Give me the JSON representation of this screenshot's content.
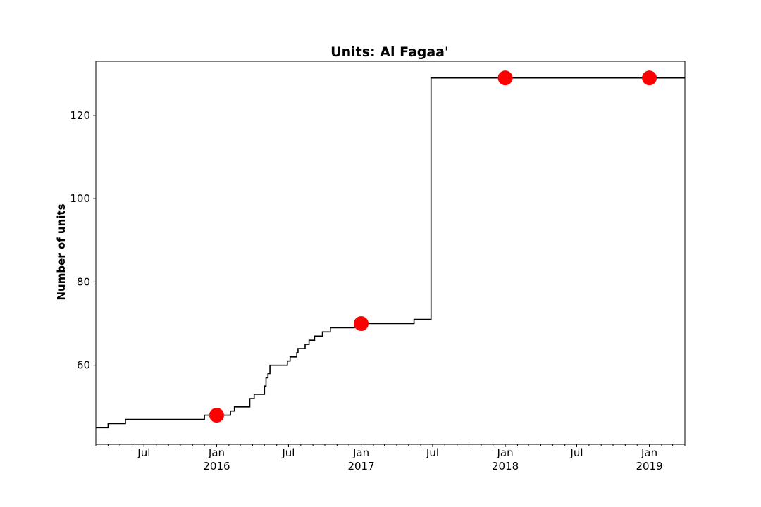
{
  "chart_data": {
    "type": "line",
    "title": "Units: Al Fagaa'",
    "xlabel": "",
    "ylabel": "Number of units",
    "xlim": [
      "2015-03-01",
      "2019-04-01"
    ],
    "ylim": [
      41,
      133
    ],
    "grid": false,
    "legend": "none",
    "y_ticks": [
      60,
      80,
      100,
      120
    ],
    "x_ticks": [
      {
        "date": "2015-07-01",
        "label": "Jul",
        "sublabel": ""
      },
      {
        "date": "2016-01-01",
        "label": "Jan",
        "sublabel": "2016"
      },
      {
        "date": "2016-07-01",
        "label": "Jul",
        "sublabel": ""
      },
      {
        "date": "2017-01-01",
        "label": "Jan",
        "sublabel": "2017"
      },
      {
        "date": "2017-07-01",
        "label": "Jul",
        "sublabel": ""
      },
      {
        "date": "2018-01-01",
        "label": "Jan",
        "sublabel": "2018"
      },
      {
        "date": "2018-07-01",
        "label": "Jul",
        "sublabel": ""
      },
      {
        "date": "2019-01-01",
        "label": "Jan",
        "sublabel": "2019"
      }
    ],
    "series": [
      {
        "style": "step",
        "color": "#000000",
        "points": [
          [
            "2015-03-01",
            45
          ],
          [
            "2015-04-01",
            46
          ],
          [
            "2015-05-15",
            47
          ],
          [
            "2015-12-01",
            48
          ],
          [
            "2016-02-05",
            49
          ],
          [
            "2016-02-15",
            50
          ],
          [
            "2016-03-25",
            52
          ],
          [
            "2016-04-05",
            53
          ],
          [
            "2016-05-01",
            55
          ],
          [
            "2016-05-05",
            57
          ],
          [
            "2016-05-10",
            58
          ],
          [
            "2016-05-15",
            60
          ],
          [
            "2016-06-28",
            61
          ],
          [
            "2016-07-05",
            62
          ],
          [
            "2016-07-22",
            63
          ],
          [
            "2016-07-25",
            64
          ],
          [
            "2016-08-12",
            65
          ],
          [
            "2016-08-22",
            66
          ],
          [
            "2016-09-05",
            67
          ],
          [
            "2016-09-25",
            68
          ],
          [
            "2016-10-15",
            69
          ],
          [
            "2016-12-15",
            70
          ],
          [
            "2017-05-15",
            71
          ],
          [
            "2017-06-27",
            129
          ],
          [
            "2019-04-01",
            129
          ]
        ]
      },
      {
        "style": "markers",
        "color": "#ff0000",
        "points": [
          [
            "2016-01-01",
            48
          ],
          [
            "2017-01-01",
            70
          ],
          [
            "2018-01-01",
            129
          ],
          [
            "2019-01-01",
            129
          ]
        ]
      }
    ]
  }
}
